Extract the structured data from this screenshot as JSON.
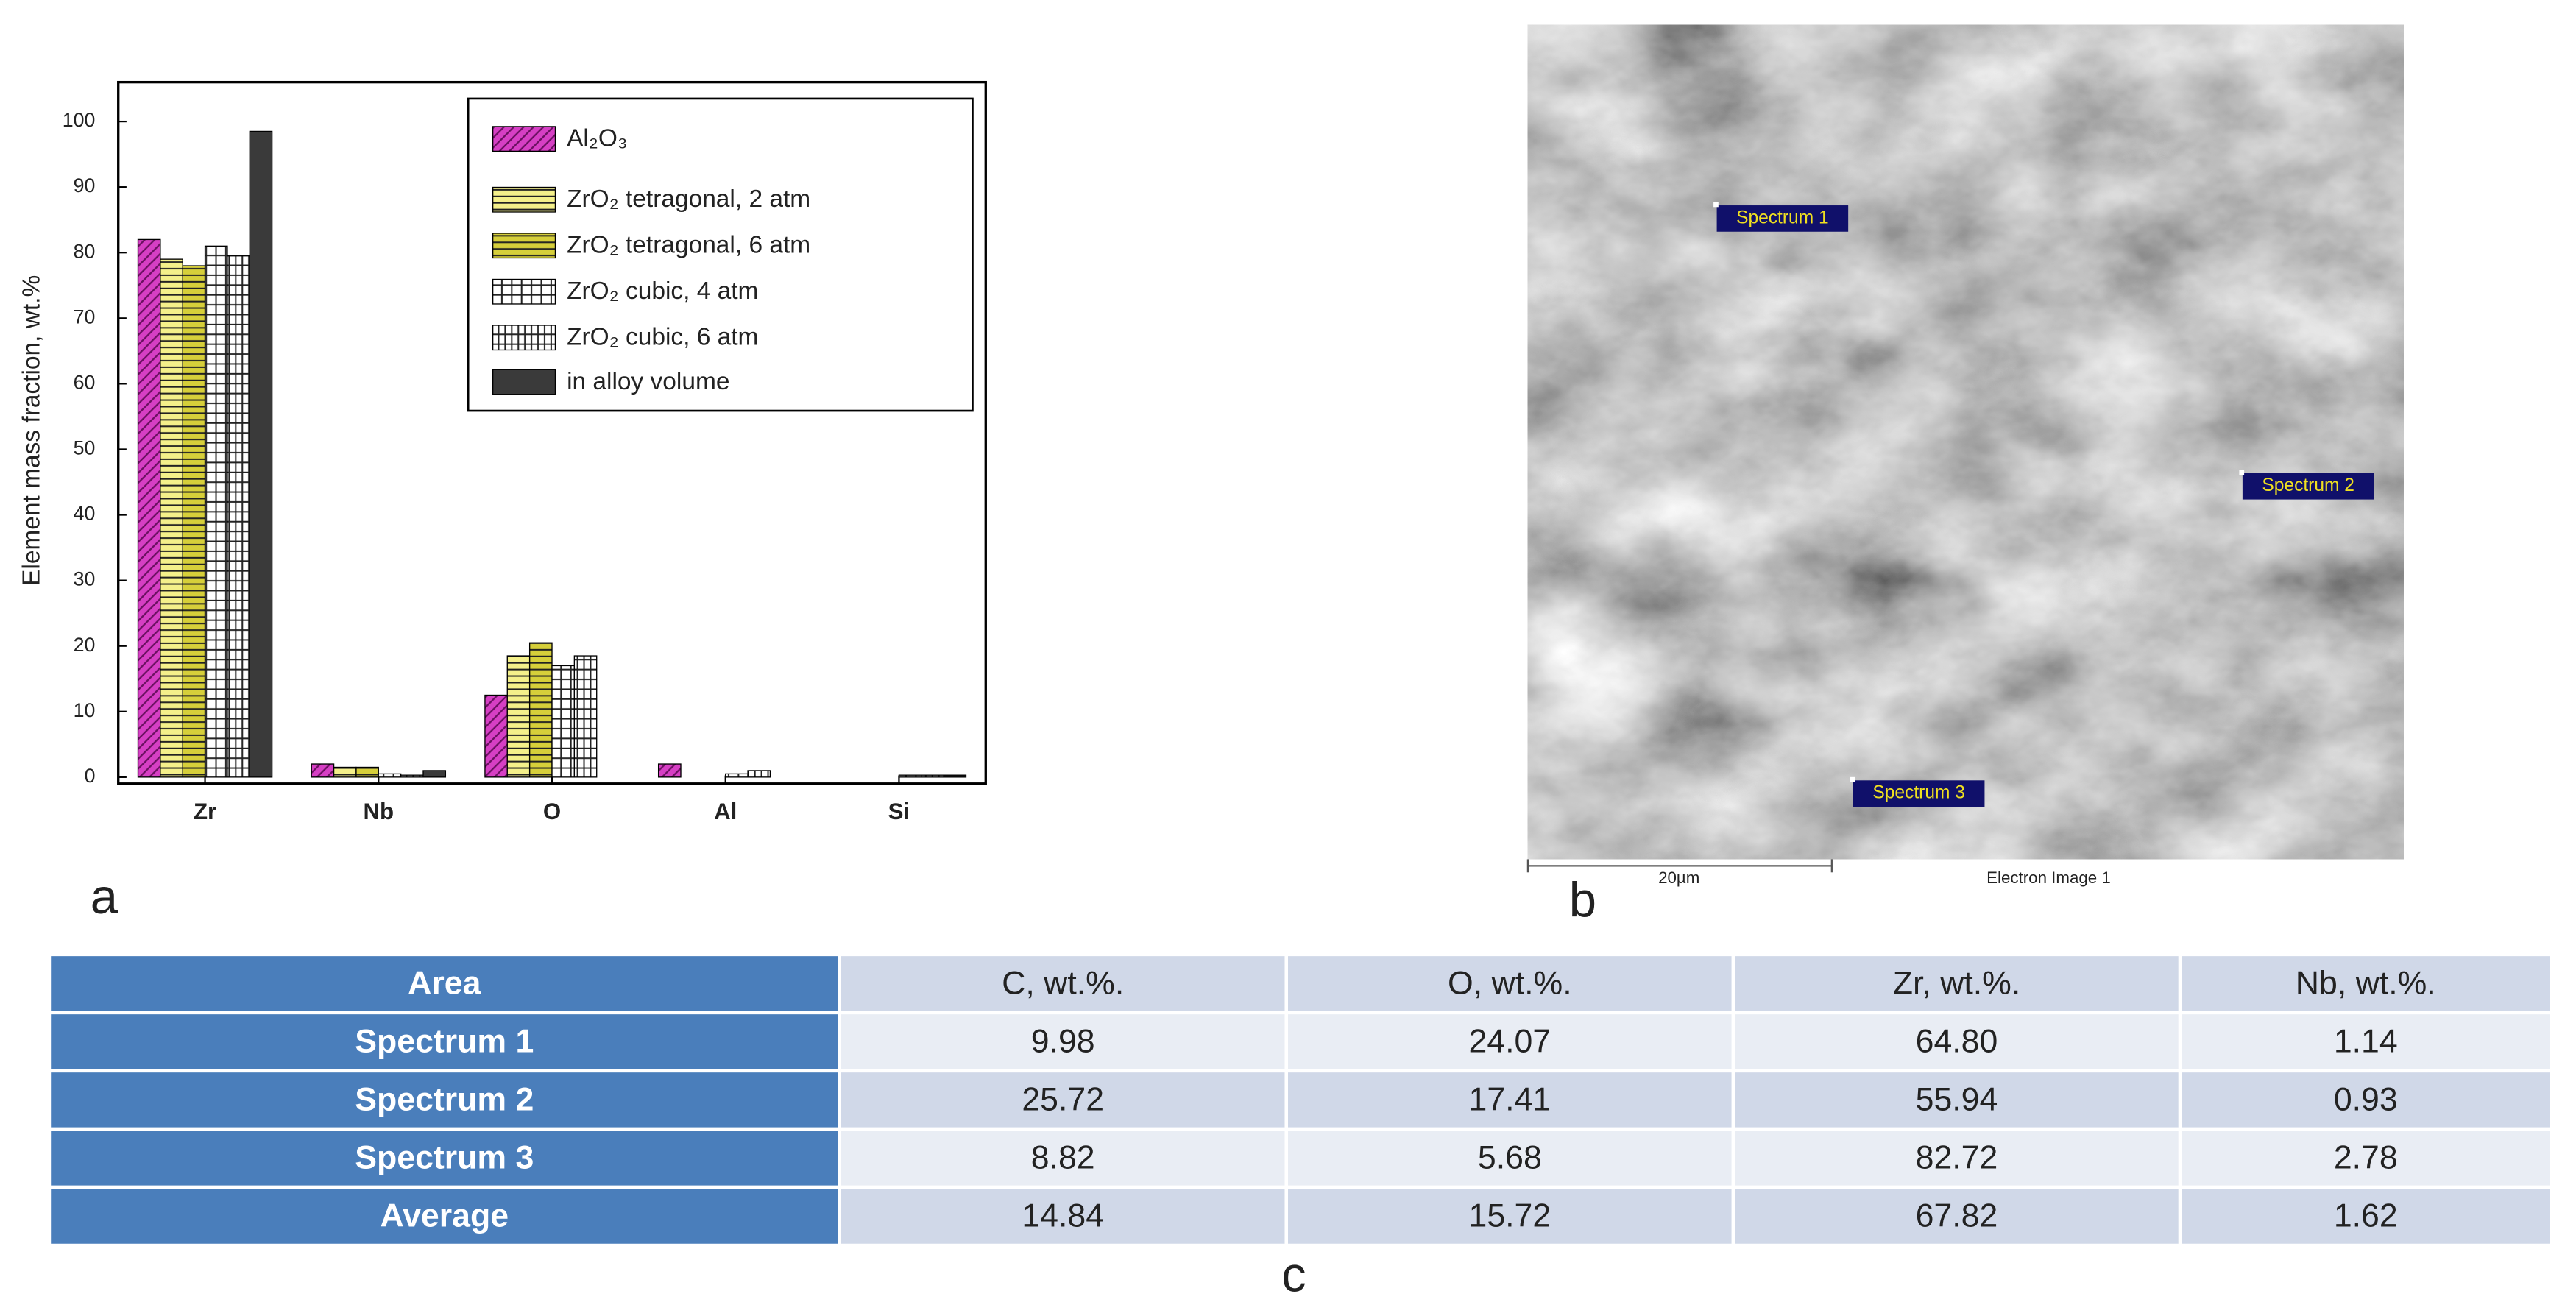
{
  "chart_data": {
    "type": "bar",
    "ylabel": "Element mass fraction, wt.%",
    "categories": [
      "Zr",
      "Nb",
      "O",
      "Al",
      "Si"
    ],
    "series": [
      {
        "name": "Al₂O₃",
        "color": "#d63fc4",
        "pattern": "diagonal",
        "values": [
          82,
          2,
          12.5,
          2,
          0
        ]
      },
      {
        "name": "ZrO₂ tetragonal, 2 atm",
        "color": "#f4f08a",
        "pattern": "horizontal",
        "values": [
          79,
          1.5,
          18.5,
          0,
          0
        ]
      },
      {
        "name": "ZrO₂ tetragonal, 6 atm",
        "color": "#d6cf3a",
        "pattern": "horizontal",
        "values": [
          78,
          1.5,
          20.5,
          0,
          0
        ]
      },
      {
        "name": "ZrO₂ cubic, 4 atm",
        "color": "#ffffff",
        "pattern": "grid",
        "values": [
          81,
          0.5,
          17,
          0.5,
          0.3
        ]
      },
      {
        "name": "ZrO₂ cubic, 6 atm",
        "color": "#ffffff",
        "pattern": "dense-grid",
        "values": [
          79.5,
          0.3,
          18.5,
          1,
          0.3
        ]
      },
      {
        "name": "in alloy volume",
        "color": "#3a3a3a",
        "pattern": "solid",
        "values": [
          98.5,
          1,
          0,
          0,
          0.3
        ]
      }
    ],
    "ylim": [
      -1,
      106
    ],
    "yticks": [
      0,
      10,
      20,
      30,
      40,
      50,
      60,
      70,
      80,
      90,
      100
    ],
    "legend": "upper-right"
  },
  "panel_labels": [
    "a",
    "b",
    "c"
  ],
  "image": {
    "spectra": [
      "Spectrum 1",
      "Spectrum 2",
      "Spectrum 3"
    ],
    "scale_bar": "20µm",
    "caption": "Electron Image 1"
  },
  "table": {
    "header": [
      "Area",
      "C, wt.%.",
      "O, wt.%.",
      "Zr, wt.%.",
      "Nb, wt.%."
    ],
    "rows": [
      [
        "Spectrum 1",
        "9.98",
        "24.07",
        "64.80",
        "1.14"
      ],
      [
        "Spectrum 2",
        "25.72",
        "17.41",
        "55.94",
        "0.93"
      ],
      [
        "Spectrum 3",
        "8.82",
        "5.68",
        "82.72",
        "2.78"
      ],
      [
        "Average",
        "14.84",
        "15.72",
        "67.82",
        "1.62"
      ]
    ]
  }
}
